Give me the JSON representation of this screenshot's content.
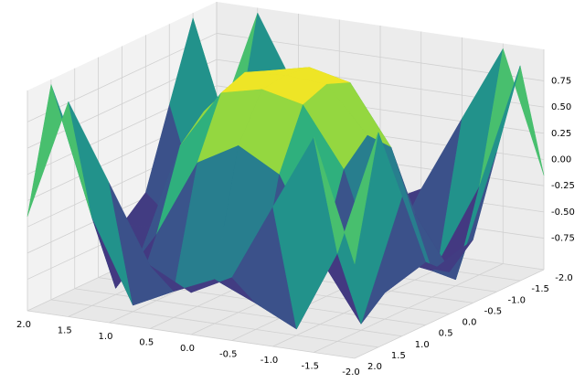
{
  "chart_data": {
    "type": "surface",
    "colormap": "viridis",
    "x": [
      -2,
      -1.5,
      -1,
      -0.5,
      0,
      0.5,
      1,
      1.5,
      2
    ],
    "y": [
      -2,
      -1.5,
      -1,
      -0.5,
      0,
      0.5,
      1,
      1.5,
      2
    ],
    "z": [
      [
        -0.15,
        1.0,
        0.28,
        -0.45,
        -0.65,
        -0.45,
        0.28,
        1.0,
        -0.15
      ],
      [
        1.0,
        -0.21,
        -0.99,
        -0.8,
        -0.63,
        -0.8,
        -0.99,
        -0.21,
        1.0
      ],
      [
        0.28,
        -0.99,
        -0.42,
        0.32,
        0.54,
        0.32,
        -0.42,
        -0.99,
        0.28
      ],
      [
        -0.45,
        -0.8,
        0.32,
        0.88,
        0.97,
        0.88,
        0.32,
        -0.8,
        -0.45
      ],
      [
        -0.65,
        -0.63,
        0.54,
        0.97,
        1.0,
        0.97,
        0.54,
        -0.63,
        -0.65
      ],
      [
        -0.45,
        -0.8,
        0.32,
        0.88,
        0.97,
        0.88,
        0.32,
        -0.8,
        -0.45
      ],
      [
        0.28,
        -0.99,
        -0.42,
        0.32,
        0.54,
        0.32,
        -0.42,
        -0.99,
        0.28
      ],
      [
        1.0,
        -0.21,
        -0.99,
        -0.8,
        -0.63,
        -0.8,
        -0.99,
        -0.21,
        1.0
      ],
      [
        -0.15,
        1.0,
        0.28,
        -0.45,
        -0.65,
        -0.45,
        0.28,
        1.0,
        -0.15
      ]
    ],
    "xlim": [
      -2,
      2
    ],
    "ylim": [
      -2,
      2
    ],
    "zlim": [
      -1.05,
      1.05
    ],
    "xticks": [
      {
        "value": -2,
        "label": "-2.0"
      },
      -1.5,
      {
        "value": -1,
        "label": "-1.0"
      },
      -0.5,
      {
        "value": 0,
        "label": "0.0"
      },
      0.5,
      {
        "value": 1,
        "label": "1.0"
      },
      1.5,
      {
        "value": 2,
        "label": "2.0"
      }
    ],
    "yticks": [
      {
        "value": -2,
        "label": "-2.0"
      },
      -1.5,
      {
        "value": -1,
        "label": "-1.0"
      },
      -0.5,
      {
        "value": 0,
        "label": "0.0"
      },
      0.5,
      {
        "value": 1,
        "label": "1.0"
      },
      1.5,
      {
        "value": 2,
        "label": "2.0"
      }
    ],
    "zticks": [
      -0.75,
      {
        "value": -0.5,
        "label": "-0.50"
      },
      -0.25,
      {
        "value": 0,
        "label": "0.00"
      },
      0.25,
      {
        "value": 0.5,
        "label": "0.50"
      },
      0.75
    ],
    "grid": true
  }
}
